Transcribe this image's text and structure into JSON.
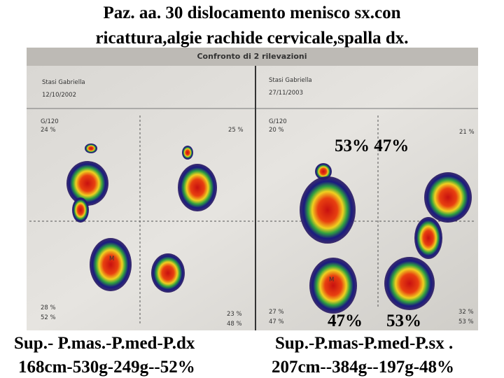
{
  "title": {
    "lines": [
      "Paz. aa. 30 dislocamento menisco sx.con",
      "ricattura,algie rachide cervicale,spalla dx."
    ]
  },
  "photo": {
    "header": "Confronto di 2 rilevazioni",
    "panels": [
      {
        "name": "Stasi Gabriella",
        "date": "12/10/2002",
        "scale": "G/120",
        "top_left": "24 %",
        "top_right": "25 %",
        "bottom_left": [
          "28 %",
          "52 %"
        ],
        "bottom_right": [
          "23 %",
          "48 %"
        ],
        "heel_mark": "M"
      },
      {
        "name": "Stasi Gabriella",
        "date": "27/11/2003",
        "scale": "G/120",
        "top_left": "20 %",
        "top_right": "21 %",
        "bottom_left": [
          "27 %",
          "47 %"
        ],
        "bottom_right": [
          "32 %",
          "53 %"
        ],
        "heel_mark": "M"
      }
    ]
  },
  "overlay": {
    "top": "53% 47%",
    "bottom_left": "47%",
    "bottom_right": "53%"
  },
  "captions": {
    "left": [
      "Sup.- P.mas.-P.med-P.dx",
      "168cm-530g-249g--52%"
    ],
    "right": [
      "Sup.-P.mas-P.med-P.sx .",
      "207cm--384g--197g-48%"
    ]
  }
}
